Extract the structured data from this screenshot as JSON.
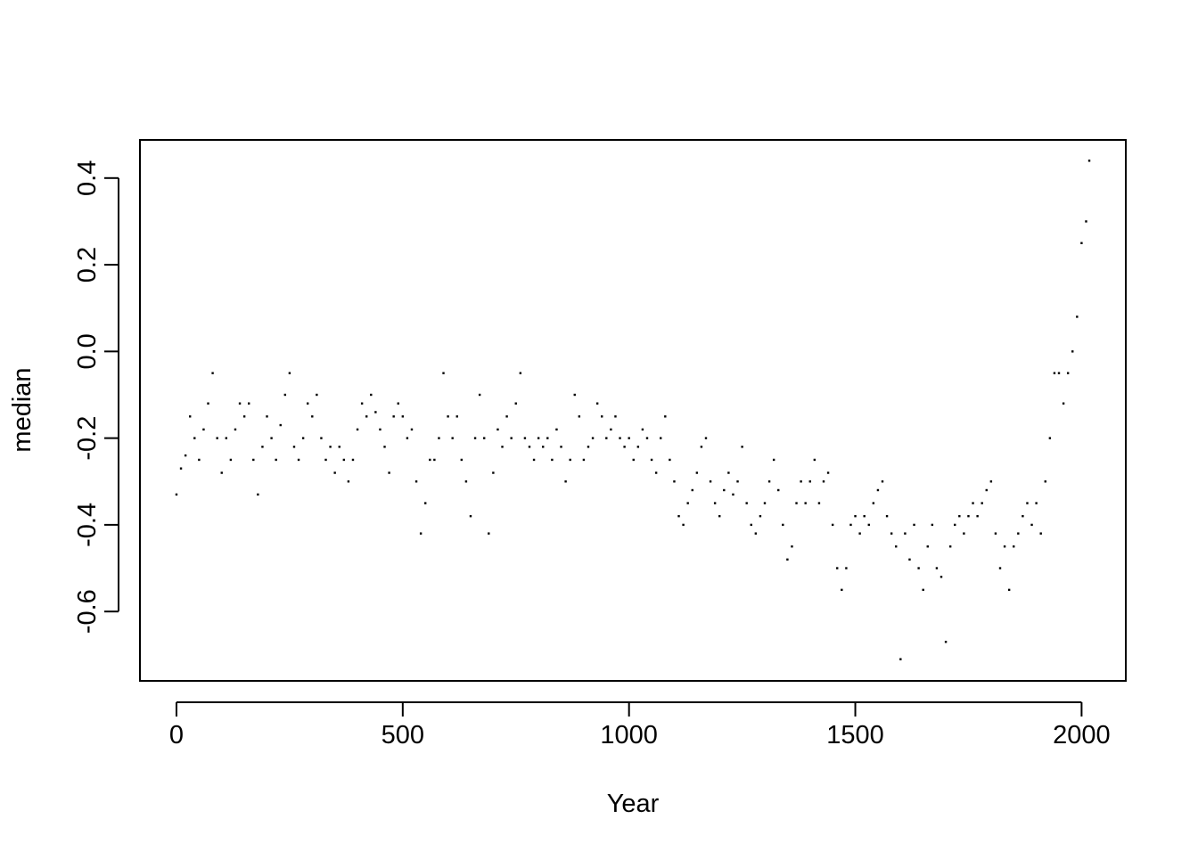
{
  "chart_data": {
    "type": "scatter",
    "xlabel": "Year",
    "ylabel": "median",
    "color": "#000000",
    "x": [
      0,
      10,
      20,
      30,
      40,
      50,
      60,
      70,
      80,
      90,
      100,
      110,
      120,
      130,
      140,
      150,
      160,
      170,
      180,
      190,
      200,
      210,
      220,
      230,
      240,
      250,
      260,
      270,
      280,
      290,
      300,
      310,
      320,
      330,
      340,
      350,
      360,
      370,
      380,
      390,
      400,
      410,
      420,
      430,
      440,
      450,
      460,
      470,
      480,
      490,
      500,
      510,
      520,
      530,
      540,
      550,
      560,
      570,
      580,
      590,
      600,
      610,
      620,
      630,
      640,
      650,
      660,
      670,
      680,
      690,
      700,
      710,
      720,
      730,
      740,
      750,
      760,
      770,
      780,
      790,
      800,
      810,
      820,
      830,
      840,
      850,
      860,
      870,
      880,
      890,
      900,
      910,
      920,
      930,
      940,
      950,
      960,
      970,
      980,
      990,
      1000,
      1010,
      1020,
      1030,
      1040,
      1050,
      1060,
      1070,
      1080,
      1090,
      1100,
      1110,
      1120,
      1130,
      1140,
      1150,
      1160,
      1170,
      1180,
      1190,
      1200,
      1210,
      1220,
      1230,
      1240,
      1250,
      1260,
      1270,
      1280,
      1290,
      1300,
      1310,
      1320,
      1330,
      1340,
      1350,
      1360,
      1370,
      1380,
      1390,
      1400,
      1410,
      1420,
      1430,
      1440,
      1450,
      1460,
      1470,
      1480,
      1490,
      1500,
      1510,
      1520,
      1530,
      1540,
      1550,
      1560,
      1570,
      1580,
      1590,
      1600,
      1610,
      1620,
      1630,
      1640,
      1650,
      1660,
      1670,
      1680,
      1690,
      1700,
      1710,
      1720,
      1730,
      1740,
      1750,
      1760,
      1770,
      1780,
      1790,
      1800,
      1810,
      1820,
      1830,
      1840,
      1850,
      1860,
      1870,
      1880,
      1890,
      1900,
      1910,
      1920,
      1930,
      1940,
      1950,
      1960,
      1970,
      1980,
      1990,
      2000,
      2010,
      2017
    ],
    "values": [
      -0.33,
      -0.27,
      -0.24,
      -0.15,
      -0.2,
      -0.25,
      -0.18,
      -0.12,
      -0.05,
      -0.2,
      -0.28,
      -0.2,
      -0.25,
      -0.18,
      -0.12,
      -0.15,
      -0.12,
      -0.25,
      -0.33,
      -0.22,
      -0.15,
      -0.2,
      -0.25,
      -0.17,
      -0.1,
      -0.05,
      -0.22,
      -0.25,
      -0.2,
      -0.12,
      -0.15,
      -0.1,
      -0.2,
      -0.25,
      -0.22,
      -0.28,
      -0.22,
      -0.25,
      -0.3,
      -0.25,
      -0.18,
      -0.12,
      -0.15,
      -0.1,
      -0.14,
      -0.18,
      -0.22,
      -0.28,
      -0.15,
      -0.12,
      -0.15,
      -0.2,
      -0.18,
      -0.3,
      -0.42,
      -0.35,
      -0.25,
      -0.25,
      -0.2,
      -0.05,
      -0.15,
      -0.2,
      -0.15,
      -0.25,
      -0.3,
      -0.38,
      -0.2,
      -0.1,
      -0.2,
      -0.42,
      -0.28,
      -0.18,
      -0.22,
      -0.15,
      -0.2,
      -0.12,
      -0.05,
      -0.2,
      -0.22,
      -0.25,
      -0.2,
      -0.22,
      -0.2,
      -0.25,
      -0.18,
      -0.22,
      -0.3,
      -0.25,
      -0.1,
      -0.15,
      -0.25,
      -0.22,
      -0.2,
      -0.12,
      -0.15,
      -0.2,
      -0.18,
      -0.15,
      -0.2,
      -0.22,
      -0.2,
      -0.25,
      -0.22,
      -0.18,
      -0.2,
      -0.25,
      -0.28,
      -0.2,
      -0.15,
      -0.25,
      -0.3,
      -0.38,
      -0.4,
      -0.35,
      -0.32,
      -0.28,
      -0.22,
      -0.2,
      -0.3,
      -0.35,
      -0.38,
      -0.32,
      -0.28,
      -0.33,
      -0.3,
      -0.22,
      -0.35,
      -0.4,
      -0.42,
      -0.38,
      -0.35,
      -0.3,
      -0.25,
      -0.32,
      -0.4,
      -0.48,
      -0.45,
      -0.35,
      -0.3,
      -0.35,
      -0.3,
      -0.25,
      -0.35,
      -0.3,
      -0.28,
      -0.4,
      -0.5,
      -0.55,
      -0.5,
      -0.4,
      -0.38,
      -0.42,
      -0.38,
      -0.4,
      -0.35,
      -0.32,
      -0.3,
      -0.38,
      -0.42,
      -0.45,
      -0.71,
      -0.42,
      -0.48,
      -0.4,
      -0.5,
      -0.55,
      -0.45,
      -0.4,
      -0.5,
      -0.52,
      -0.67,
      -0.45,
      -0.4,
      -0.38,
      -0.42,
      -0.38,
      -0.35,
      -0.38,
      -0.35,
      -0.32,
      -0.3,
      -0.42,
      -0.5,
      -0.45,
      -0.55,
      -0.45,
      -0.42,
      -0.38,
      -0.35,
      -0.4,
      -0.35,
      -0.42,
      -0.3,
      -0.2,
      -0.05,
      -0.05,
      -0.12,
      -0.05,
      0.0,
      0.08,
      0.25,
      0.3,
      0.44
    ],
    "xlim": [
      -80.7,
      2097.7
    ],
    "ylim": [
      -0.76,
      0.488
    ],
    "xticks": [
      0,
      500,
      1000,
      1500,
      2000
    ],
    "yticks": [
      -0.6,
      -0.4,
      -0.2,
      {
        "value": 0,
        "label": "0.0"
      },
      0.2,
      0.4
    ]
  }
}
